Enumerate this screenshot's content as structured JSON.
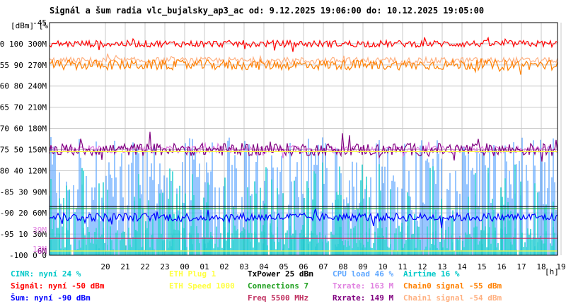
{
  "title": "Signál a šum radia vlc_bujalsky_ap3_ac od: 9.12.2025 19:06:00 do: 10.12.2025 19:05:00",
  "left_axis_unit": "[dBm] [%]",
  "x_unit": "[h]",
  "legend": [
    {
      "text": "CINR: nyní 24 %",
      "color": "#00c8c8"
    },
    {
      "text": "Signál: nyní -50 dBm",
      "color": "#ff0000"
    },
    {
      "text": "Šum: nyní -90 dBm",
      "color": "#0000ff"
    },
    {
      "text": "ETH Plug 1",
      "color": "#ffff40"
    },
    {
      "text": "ETH Speed 1000",
      "color": "#ffff40"
    },
    {
      "text": "TxPower 25 dBm",
      "color": "#000000"
    },
    {
      "text": "Connections 7",
      "color": "#20a020"
    },
    {
      "text": "Freq 5500 MHz",
      "color": "#c03060"
    },
    {
      "text": "CPU load 46 %",
      "color": "#60a8ff"
    },
    {
      "text": "Txrate: 163 M",
      "color": "#e080e0"
    },
    {
      "text": "Rxrate: 149 M",
      "color": "#800080"
    },
    {
      "text": "Airtime 16 %",
      "color": "#00c8c8"
    },
    {
      "text": "Chain0 signal -55 dBm",
      "color": "#ff8000"
    },
    {
      "text": "Chain1 signal -54 dBm",
      "color": "#ffb080"
    }
  ],
  "chart_data": {
    "type": "line",
    "x_ticks": [
      "20",
      "21",
      "22",
      "23",
      "00",
      "01",
      "02",
      "03",
      "04",
      "05",
      "06",
      "07",
      "08",
      "09",
      "10",
      "11",
      "12",
      "13",
      "14",
      "15",
      "16",
      "17",
      "18",
      "19"
    ],
    "y_dbm_ticks": [
      "-45",
      "-50",
      "-55",
      "-60",
      "-65",
      "-70",
      "-75",
      "-80",
      "-85",
      "-90",
      "-95",
      "-100"
    ],
    "y_pct_ticks": [
      "",
      "100",
      "90",
      "80",
      "70",
      "60",
      "50",
      "40",
      "30",
      "20",
      "10",
      "0"
    ],
    "y_rate_ticks": [
      "",
      "300M",
      "270M",
      "240M",
      "210M",
      "180M",
      "150M",
      "120M",
      "90M",
      "60M",
      "30M",
      "0"
    ],
    "ylim_dbm": [
      -100,
      -45
    ],
    "extra_labels": [
      {
        "text": "39M",
        "color": "#e080e0",
        "value_dbm": -94
      },
      {
        "text": "13M",
        "color": "#e080e0",
        "value_dbm": -98.5
      },
      {
        "text": "6M",
        "color": "#800080",
        "value_dbm": -99
      }
    ],
    "series": [
      {
        "name": "Signál",
        "color": "#ff0000",
        "level_dbm": -50,
        "noise": 0.8
      },
      {
        "name": "Chain1 signal",
        "color": "#ffb080",
        "level_dbm": -54,
        "noise": 0.8
      },
      {
        "name": "Chain0 signal",
        "color": "#ff8000",
        "level_dbm": -55,
        "noise": 1.2
      },
      {
        "name": "Txrate",
        "color": "#e080e0",
        "level_dbm": -75,
        "noise": 0.8
      },
      {
        "name": "Rxrate",
        "color": "#800080",
        "level_dbm": -75,
        "noise": 1.5
      },
      {
        "name": "ETH Speed",
        "color": "#ffff40",
        "level_dbm": -75.5,
        "noise": 0
      },
      {
        "name": "Connections",
        "color": "#20a020",
        "level_dbm": -89,
        "noise": 0
      },
      {
        "name": "TxPower",
        "color": "#000000",
        "level_dbm": -88.5,
        "noise": 0
      },
      {
        "name": "Šum",
        "color": "#0000ff",
        "level_dbm": -91,
        "noise": 1.0
      },
      {
        "name": "Freq",
        "color": "#c03060",
        "level_dbm": -96,
        "noise": 0
      },
      {
        "name": "ETH Plug",
        "color": "#ffff40",
        "level_dbm": -99,
        "noise": 0
      }
    ]
  }
}
